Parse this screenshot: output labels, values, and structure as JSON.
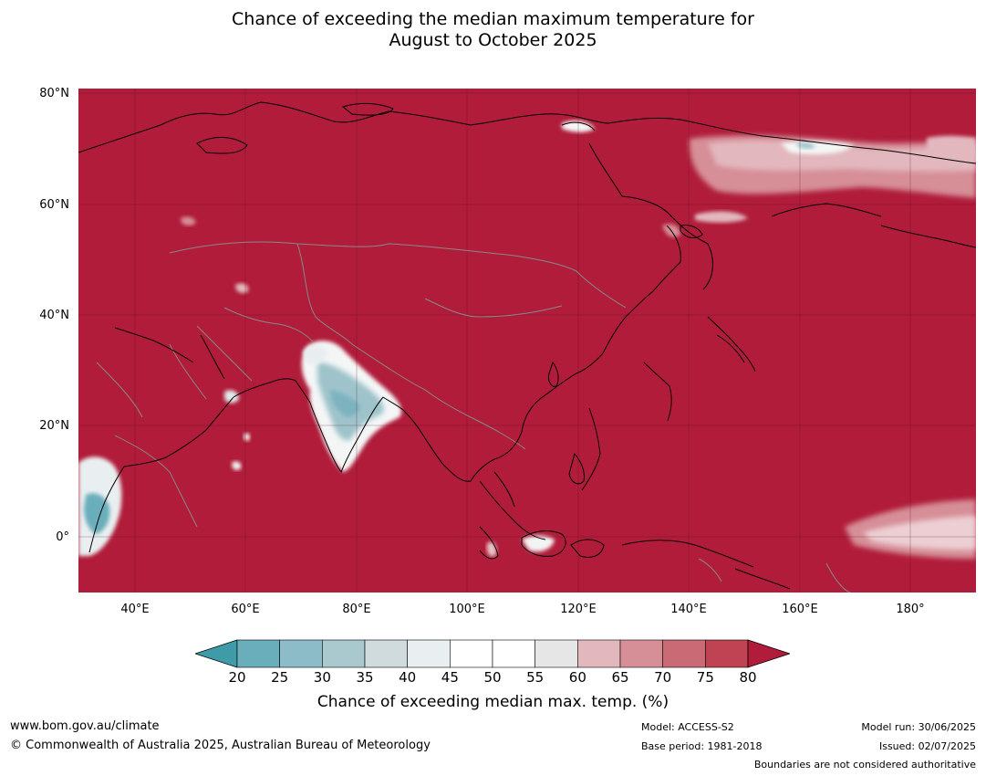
{
  "title_line1": "Chance of exceeding the median maximum temperature for",
  "title_line2": "August to October 2025",
  "lat_labels": [
    "80°N",
    "60°N",
    "40°N",
    "20°N",
    "0°"
  ],
  "lon_labels": [
    "40°E",
    "60°E",
    "80°E",
    "100°E",
    "120°E",
    "140°E",
    "160°E",
    "180°"
  ],
  "colorbar": {
    "ticks": [
      "20",
      "25",
      "30",
      "35",
      "40",
      "45",
      "50",
      "55",
      "60",
      "65",
      "70",
      "75",
      "80"
    ],
    "colors": [
      "#3f9ba8",
      "#6aaebb",
      "#8bbcc7",
      "#aac9cf",
      "#cfdbdd",
      "#e9eff0",
      "#ffffff",
      "#ffffff",
      "#e6e6e6",
      "#e2b8be",
      "#d68e97",
      "#c96a75",
      "#bf4352",
      "#b01c3a"
    ],
    "label": "Chance of exceeding median max. temp. (%)"
  },
  "map": {
    "dominant_color": "#b01c3a",
    "coast_color": "#000000",
    "border_color": "#888888"
  },
  "footer": {
    "website": "www.bom.gov.au/climate",
    "copyright": "© Commonwealth of Australia 2025, Australian Bureau of Meteorology",
    "model": "Model: ACCESS-S2",
    "base_period": "Base period: 1981-2018",
    "model_run": "Model run: 30/06/2025",
    "issued": "Issued: 02/07/2025",
    "disclaimer": "Boundaries are not considered authoritative"
  }
}
